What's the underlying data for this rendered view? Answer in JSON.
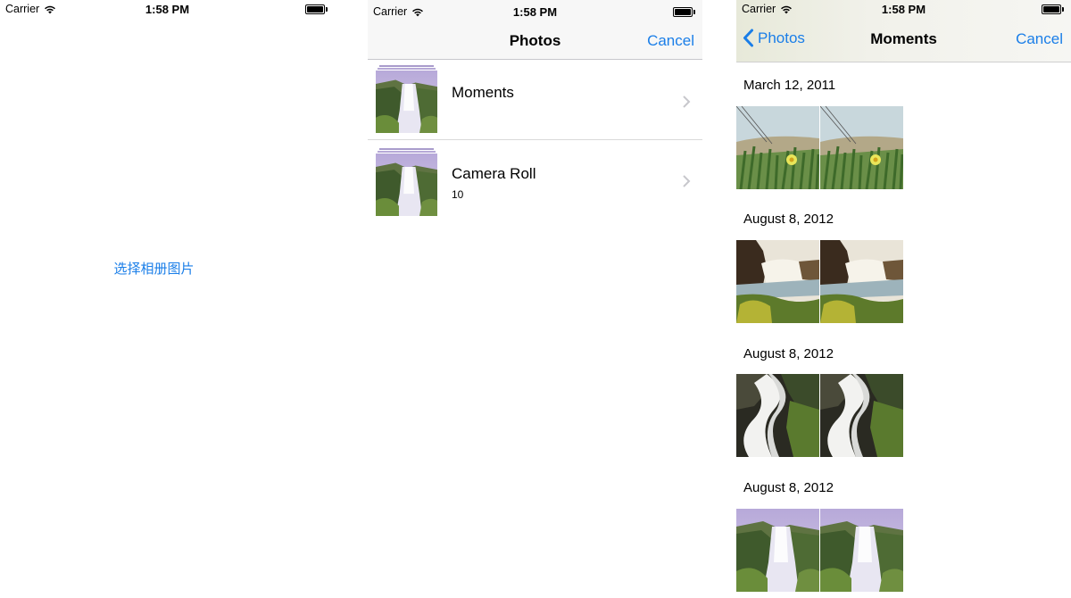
{
  "status_bar": {
    "carrier": "Carrier",
    "time": "1:58 PM"
  },
  "screen1": {
    "pick_link": "选择相册图片"
  },
  "screen2": {
    "title": "Photos",
    "cancel": "Cancel",
    "albums": [
      {
        "name": "Moments",
        "count": ""
      },
      {
        "name": "Camera Roll",
        "count": "10"
      }
    ]
  },
  "screen3": {
    "back": "Photos",
    "title": "Moments",
    "cancel": "Cancel",
    "moments": [
      {
        "date": "March 12, 2011",
        "photo_type": "grass-flower"
      },
      {
        "date": "August 8, 2012",
        "photo_type": "waterfall-cliff"
      },
      {
        "date": "August 8, 2012",
        "photo_type": "rapids"
      },
      {
        "date": "August 8, 2012",
        "photo_type": "waterfall-purple"
      }
    ]
  },
  "colors": {
    "tint": "#1a7ee8",
    "navbar_bg": "#f7f7f7",
    "separator": "#c8c7cc"
  }
}
